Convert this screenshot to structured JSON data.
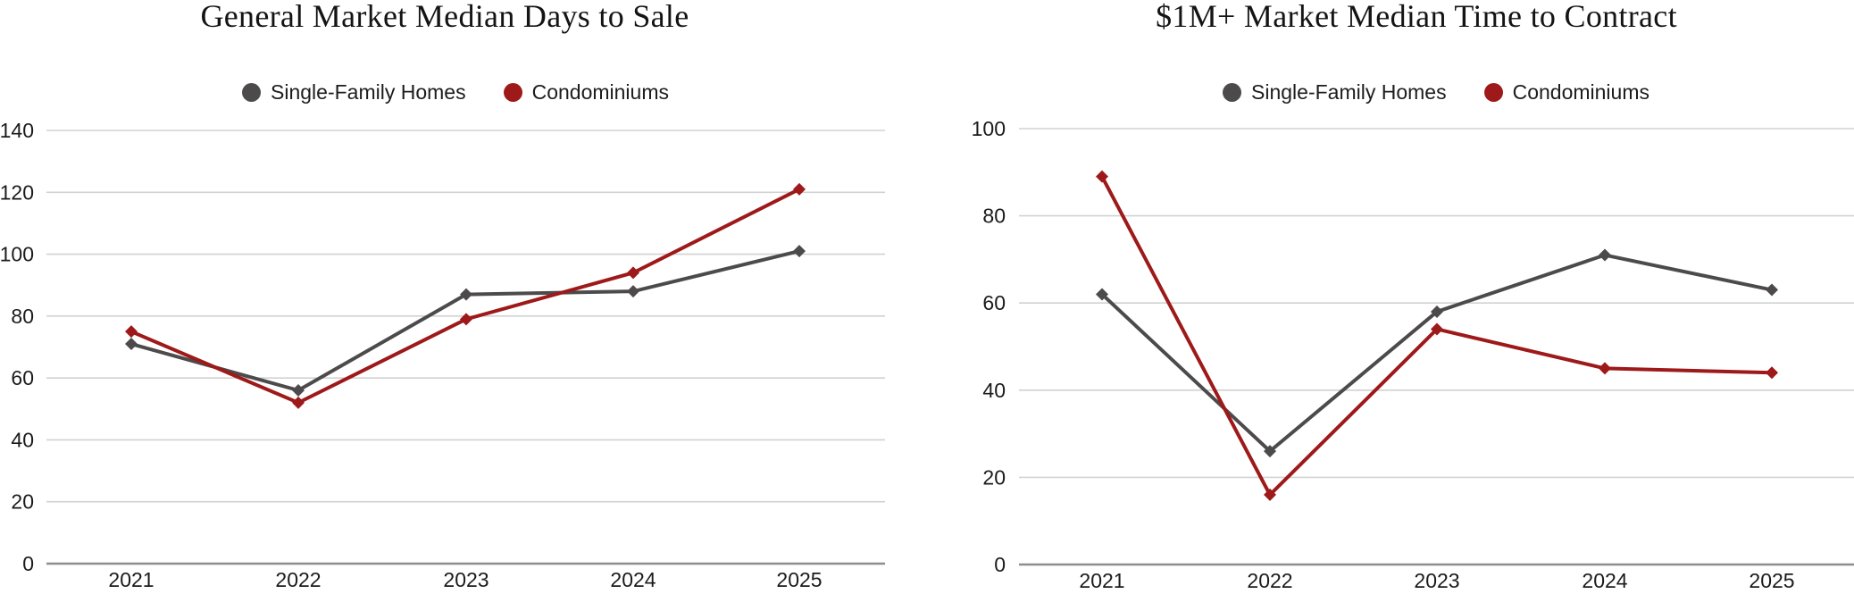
{
  "chart_data": [
    {
      "type": "line",
      "title": "General Market Median Days to Sale",
      "x": [
        "2021",
        "2022",
        "2023",
        "2024",
        "2025"
      ],
      "series": [
        {
          "name": "Single-Family Homes",
          "color": "#4d4a4b",
          "values": [
            71,
            56,
            87,
            88,
            101
          ]
        },
        {
          "name": "Condominiums",
          "color": "#9e1919",
          "values": [
            75,
            52,
            79,
            94,
            121
          ]
        }
      ],
      "ylim": [
        0,
        140
      ],
      "yticks": [
        0,
        20,
        40,
        60,
        80,
        100,
        120,
        140
      ],
      "grid": "horizontal",
      "legend_position": "top",
      "marker": "diamond"
    },
    {
      "type": "line",
      "title": "$1M+ Market Median Time to Contract",
      "x": [
        "2021",
        "2022",
        "2023",
        "2024",
        "2025"
      ],
      "series": [
        {
          "name": "Single-Family Homes",
          "color": "#4d4a4b",
          "values": [
            62,
            26,
            58,
            71,
            63
          ]
        },
        {
          "name": "Condominiums",
          "color": "#9e1919",
          "values": [
            89,
            16,
            54,
            45,
            44
          ]
        }
      ],
      "ylim": [
        0,
        100
      ],
      "yticks": [
        0,
        20,
        40,
        60,
        80,
        100
      ],
      "grid": "horizontal",
      "legend_position": "top",
      "marker": "diamond"
    }
  ],
  "colors": {
    "single_family": "#4d4a4b",
    "condominiums": "#9e1919",
    "gridline": "#d2d2d2",
    "axis_line": "#8e8e8e",
    "tick_text": "#1b1b1b",
    "title_text": "#141414",
    "background": "#ffffff"
  }
}
